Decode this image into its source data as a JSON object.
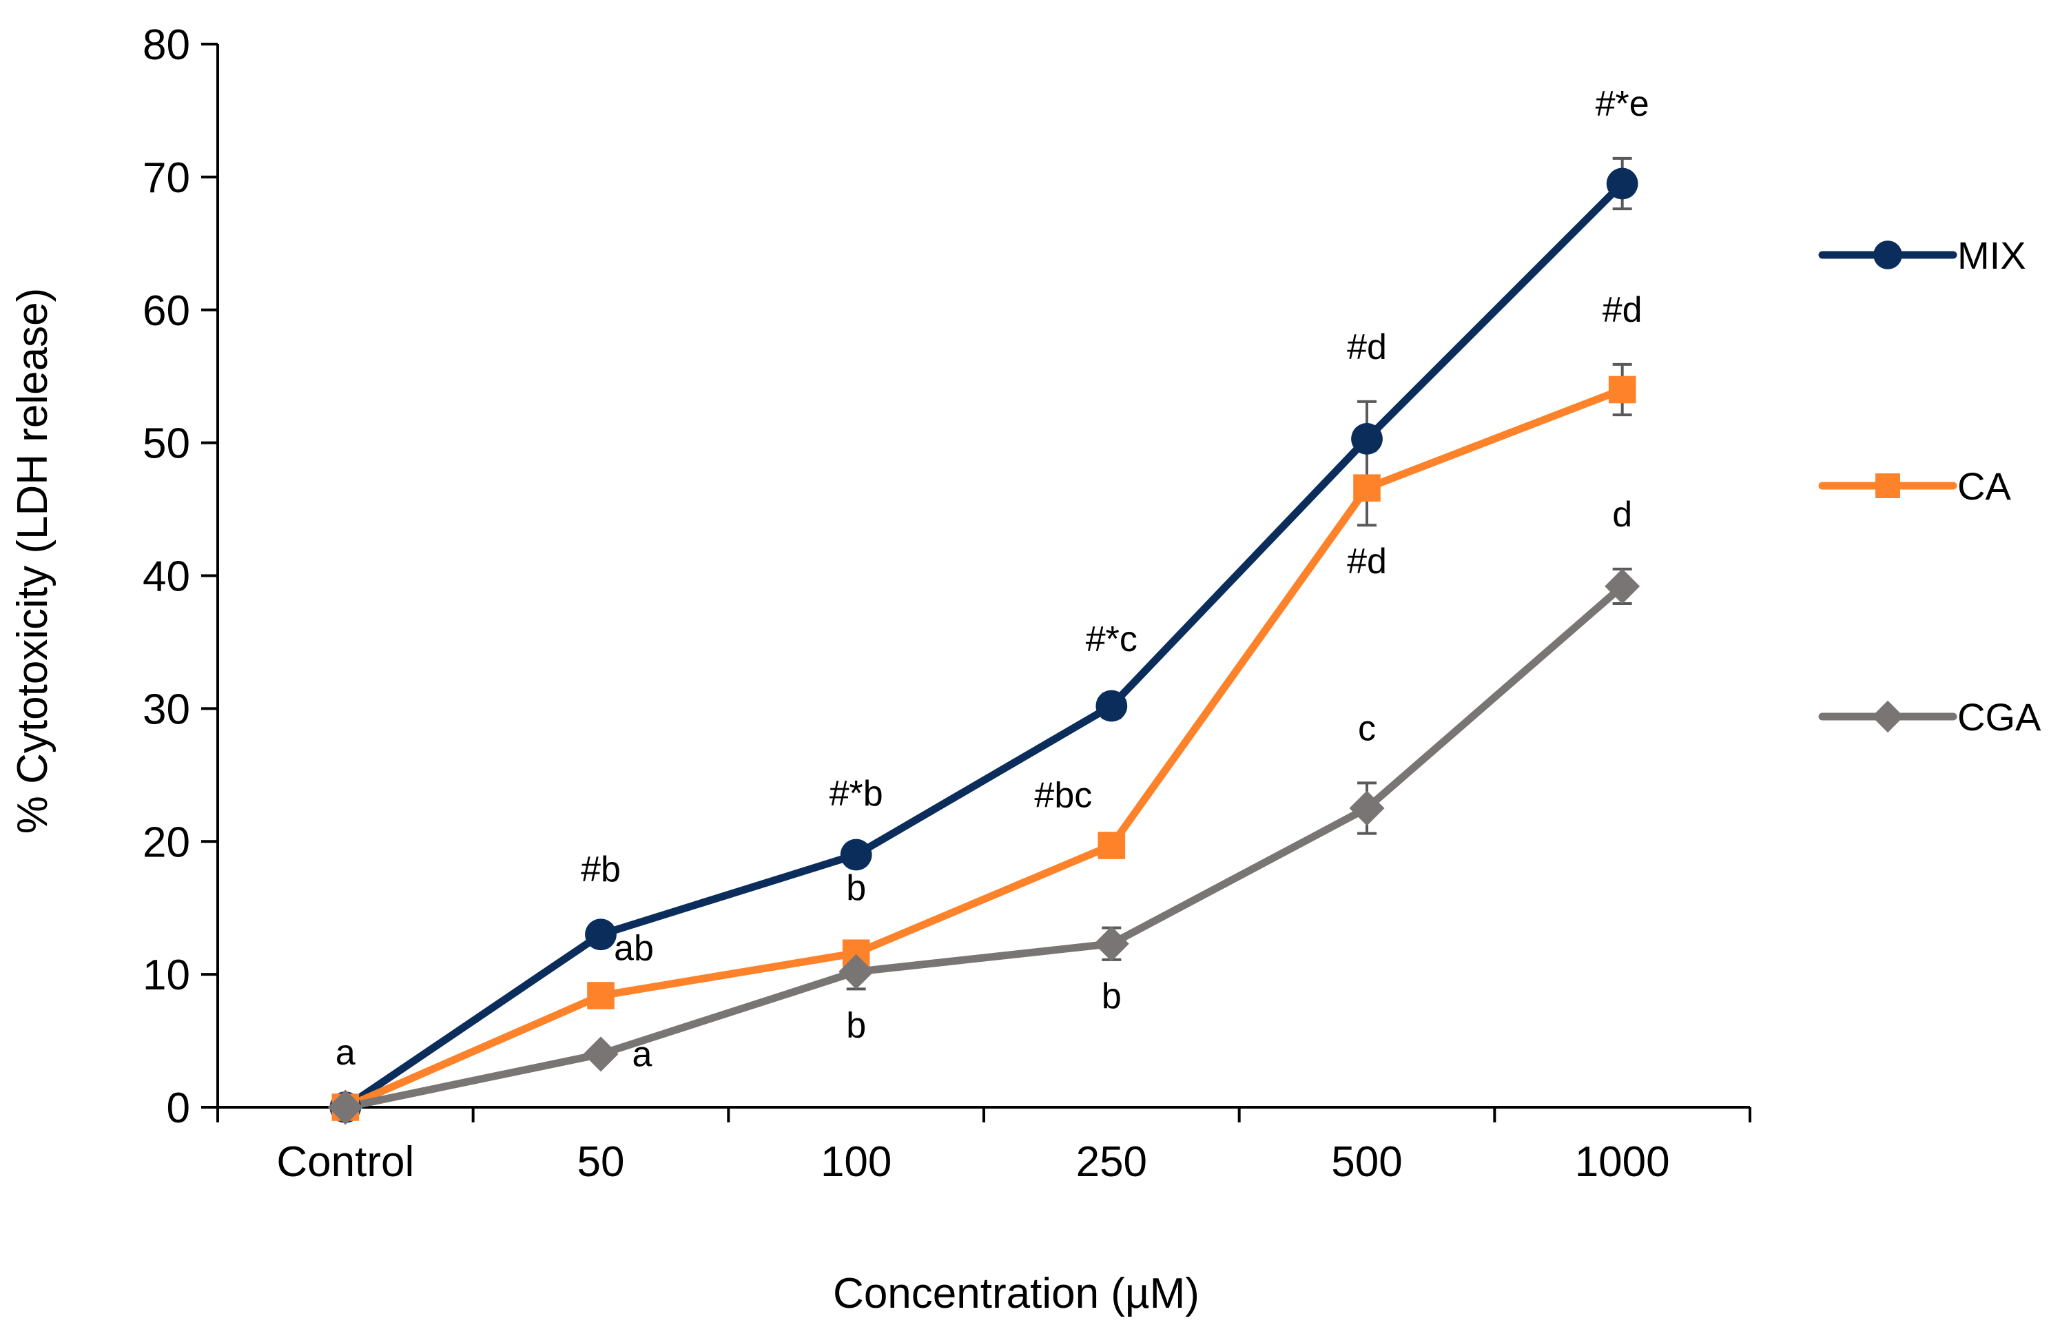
{
  "chart_data": {
    "type": "line",
    "title": "",
    "xlabel": "Concentration (µM)",
    "ylabel": "% Cytotoxicity (LDH release)",
    "ylim": [
      0,
      80
    ],
    "yticks": [
      0,
      10,
      20,
      30,
      40,
      50,
      60,
      70,
      80
    ],
    "categories": [
      "Control",
      "50",
      "100",
      "250",
      "500",
      "1000"
    ],
    "grid": false,
    "legend_position": "right",
    "series": [
      {
        "name": "MIX",
        "color": "#0b2d5b",
        "marker": "circle",
        "values": [
          0,
          13,
          19,
          30.2,
          50.3,
          69.5
        ],
        "errors": [
          0,
          0.8,
          0.5,
          0.9,
          2.8,
          1.9
        ],
        "labels": [
          "",
          "#b",
          "#*b",
          "#*c",
          "#d",
          "#*e"
        ],
        "label_side": [
          "above",
          "above",
          "above",
          "above",
          "above",
          "above"
        ]
      },
      {
        "name": "CA",
        "color": "#fd822a",
        "marker": "square",
        "values": [
          0,
          8.4,
          11.6,
          19.7,
          46.6,
          54
        ],
        "errors": [
          0,
          0.6,
          0.8,
          0.8,
          2.8,
          1.9
        ],
        "labels": [
          "",
          "ab",
          "b",
          "#bc",
          "#d",
          "#d"
        ],
        "label_side": [
          "above",
          "above-right",
          "above",
          "above-left",
          "below",
          "above"
        ]
      },
      {
        "name": "CGA",
        "color": "#7a7575",
        "marker": "diamond",
        "values": [
          0,
          4,
          10.2,
          12.3,
          22.5,
          39.2
        ],
        "errors": [
          0,
          0.4,
          1.3,
          1.2,
          1.9,
          1.3
        ],
        "labels": [
          "a",
          "a",
          "b",
          "b",
          "c",
          "d"
        ],
        "label_side": [
          "above",
          "below-right",
          "below",
          "below",
          "above",
          "above"
        ]
      }
    ]
  }
}
